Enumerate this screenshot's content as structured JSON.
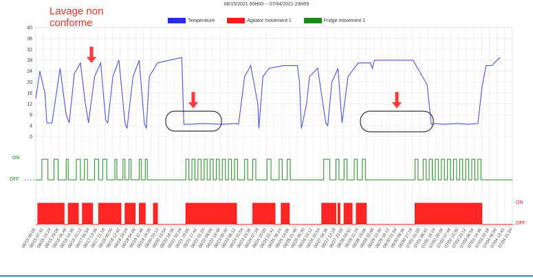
{
  "header": {
    "date_range": "06/15/2021 00H00 -- 07/04/2021 23H59",
    "annotation": "Lavage non\nconforme"
  },
  "legend": [
    {
      "label": "Temperature",
      "color": "#2a2af2"
    },
    {
      "label": "Agitator movement 1",
      "color": "#ff1a1a"
    },
    {
      "label": "Fridge movement 1",
      "color": "#1a8a1a"
    }
  ],
  "states": {
    "fridge_on": "ON",
    "fridge_off": "OFF",
    "agitator_on": "ON",
    "agitator_off": "OFF"
  },
  "chart_data": {
    "type": "line",
    "title": "",
    "xlabel": "",
    "ylabel": "",
    "ylim": [
      0,
      40
    ],
    "yticks": [
      0,
      4,
      8,
      12,
      16,
      20,
      24,
      28,
      32,
      36,
      40
    ],
    "grid": true,
    "legend_position": "top-center",
    "series": [
      {
        "name": "Temperature",
        "type": "line",
        "x": [
          0.0,
          0.2,
          0.45,
          0.55,
          0.8,
          1.2,
          1.5,
          1.65,
          1.9,
          2.2,
          2.45,
          2.6,
          2.9,
          3.2,
          3.45,
          3.55,
          3.8,
          4.1,
          4.4,
          4.5,
          4.8,
          5.1,
          5.35,
          5.45,
          5.6,
          6.0,
          6.6,
          7.2,
          7.3,
          7.35,
          7.5,
          8.3,
          9.2,
          9.9,
          10.0,
          10.3,
          10.6,
          10.95,
          11.0,
          11.2,
          11.5,
          12.2,
          12.9,
          13.0,
          13.1,
          13.35,
          13.5,
          13.9,
          14.3,
          14.4,
          14.6,
          14.9,
          15.1,
          15.4,
          15.9,
          16.5,
          16.6,
          16.7,
          17.6,
          18.6,
          19.3,
          19.5,
          19.55,
          19.7,
          20.1,
          20.8,
          21.3,
          21.8,
          22.0,
          22.2,
          22.5,
          22.6,
          22.9
        ],
        "values": [
          14,
          24,
          16,
          5,
          5,
          25,
          8,
          5,
          23,
          27,
          12,
          5,
          22,
          27,
          6,
          5,
          22,
          28,
          5,
          3,
          22,
          28,
          5,
          3,
          22,
          27,
          28,
          29,
          4.5,
          4.5,
          4.5,
          4.8,
          4.5,
          4.8,
          4.5,
          22,
          26,
          12,
          3,
          22,
          25,
          26,
          26,
          20,
          3,
          12,
          22,
          25,
          5,
          4,
          20,
          25,
          5,
          22,
          27,
          27,
          25,
          28,
          28,
          28,
          19,
          4.5,
          4.5,
          4.8,
          4.5,
          4.8,
          4.5,
          4.8,
          18,
          26,
          26,
          27,
          29
        ]
      },
      {
        "name": "Fridge movement 1",
        "type": "state",
        "on_intervals": [
          [
            0.3,
            0.6
          ],
          [
            0.9,
            1.1
          ],
          [
            1.5,
            1.6
          ],
          [
            2.0,
            2.2
          ],
          [
            2.4,
            2.55
          ],
          [
            2.9,
            3.1
          ],
          [
            3.3,
            3.5
          ],
          [
            3.9,
            4.0
          ],
          [
            4.3,
            4.4
          ],
          [
            4.6,
            4.7
          ],
          [
            5.1,
            5.2
          ],
          [
            5.4,
            5.5
          ],
          [
            7.4,
            7.55
          ],
          [
            7.7,
            7.85
          ],
          [
            8.0,
            8.15
          ],
          [
            8.3,
            8.45
          ],
          [
            8.6,
            8.75
          ],
          [
            8.9,
            9.05
          ],
          [
            9.2,
            9.35
          ],
          [
            9.5,
            9.65
          ],
          [
            9.8,
            9.95
          ],
          [
            10.3,
            10.45
          ],
          [
            10.7,
            10.85
          ],
          [
            11.4,
            11.6
          ],
          [
            12.0,
            12.15
          ],
          [
            12.4,
            12.55
          ],
          [
            14.2,
            14.5
          ],
          [
            14.8,
            14.95
          ],
          [
            15.2,
            15.35
          ],
          [
            15.7,
            15.85
          ],
          [
            16.1,
            16.25
          ],
          [
            18.7,
            18.85
          ],
          [
            19.1,
            19.25
          ],
          [
            19.4,
            19.55
          ],
          [
            19.7,
            19.85
          ],
          [
            20.0,
            20.15
          ],
          [
            20.3,
            20.45
          ],
          [
            20.6,
            20.75
          ],
          [
            20.9,
            21.05
          ],
          [
            21.2,
            21.35
          ],
          [
            21.5,
            21.65
          ],
          [
            21.8,
            21.95
          ]
        ]
      },
      {
        "name": "Agitator movement 1",
        "type": "state",
        "on_intervals": [
          [
            0.1,
            1.4
          ],
          [
            1.6,
            2.1
          ],
          [
            2.3,
            2.8
          ],
          [
            3.1,
            4.2
          ],
          [
            4.4,
            4.9
          ],
          [
            5.1,
            5.4
          ],
          [
            5.8,
            6.0
          ],
          [
            7.4,
            9.9
          ],
          [
            10.7,
            11.8
          ],
          [
            12.1,
            12.5
          ],
          [
            14.1,
            14.8
          ],
          [
            14.9,
            15.0
          ],
          [
            15.2,
            15.6
          ],
          [
            15.8,
            16.3
          ],
          [
            18.7,
            22.0
          ]
        ]
      }
    ],
    "x_ticks": [
      "06/15 00:00",
      "06/15 07:42",
      "06/15 15:24",
      "06/15 23:06",
      "06/16 06:48",
      "06/16 14:30",
      "06/16 22:12",
      "06/17 05:54",
      "06/17 13:36",
      "06/17 21:18",
      "06/18 05:00",
      "06/18 12:42",
      "06/18 20:24",
      "06/19 04:06",
      "06/19 11:48",
      "06/19 19:30",
      "06/20 03:12",
      "06/20 10:54",
      "06/20 18:36",
      "06/21 02:18",
      "06/21 10:00",
      "06/21 17:42",
      "06/22 01:24",
      "06/22 09:06",
      "06/22 16:48",
      "06/23 00:30",
      "06/23 08:12",
      "06/23 15:54",
      "06/23 23:36",
      "06/24 07:18",
      "06/24 15:00",
      "06/24 22:42",
      "06/25 06:24",
      "06/25 14:06",
      "06/25 21:48",
      "06/26 05:30",
      "06/26 13:12",
      "06/26 20:54",
      "06/27 04:36",
      "06/27 12:18",
      "06/27 20:00",
      "06/28 03:42",
      "06/28 11:24",
      "06/28 19:06",
      "06/29 02:48",
      "06/29 10:30",
      "06/29 18:12",
      "06/30 01:54",
      "06/30 09:36",
      "06/30 17:18",
      "07/01 01:00",
      "07/01 08:42",
      "07/01 16:24",
      "07/02 00:06",
      "07/02 07:48",
      "07/02 15:30",
      "07/02 23:12",
      "07/03 06:54",
      "07/03 14:36",
      "07/03 22:18",
      "07/04 06:00",
      "07/04 13:42",
      "07/04 21:24"
    ],
    "x_range": [
      0,
      23.5
    ]
  }
}
